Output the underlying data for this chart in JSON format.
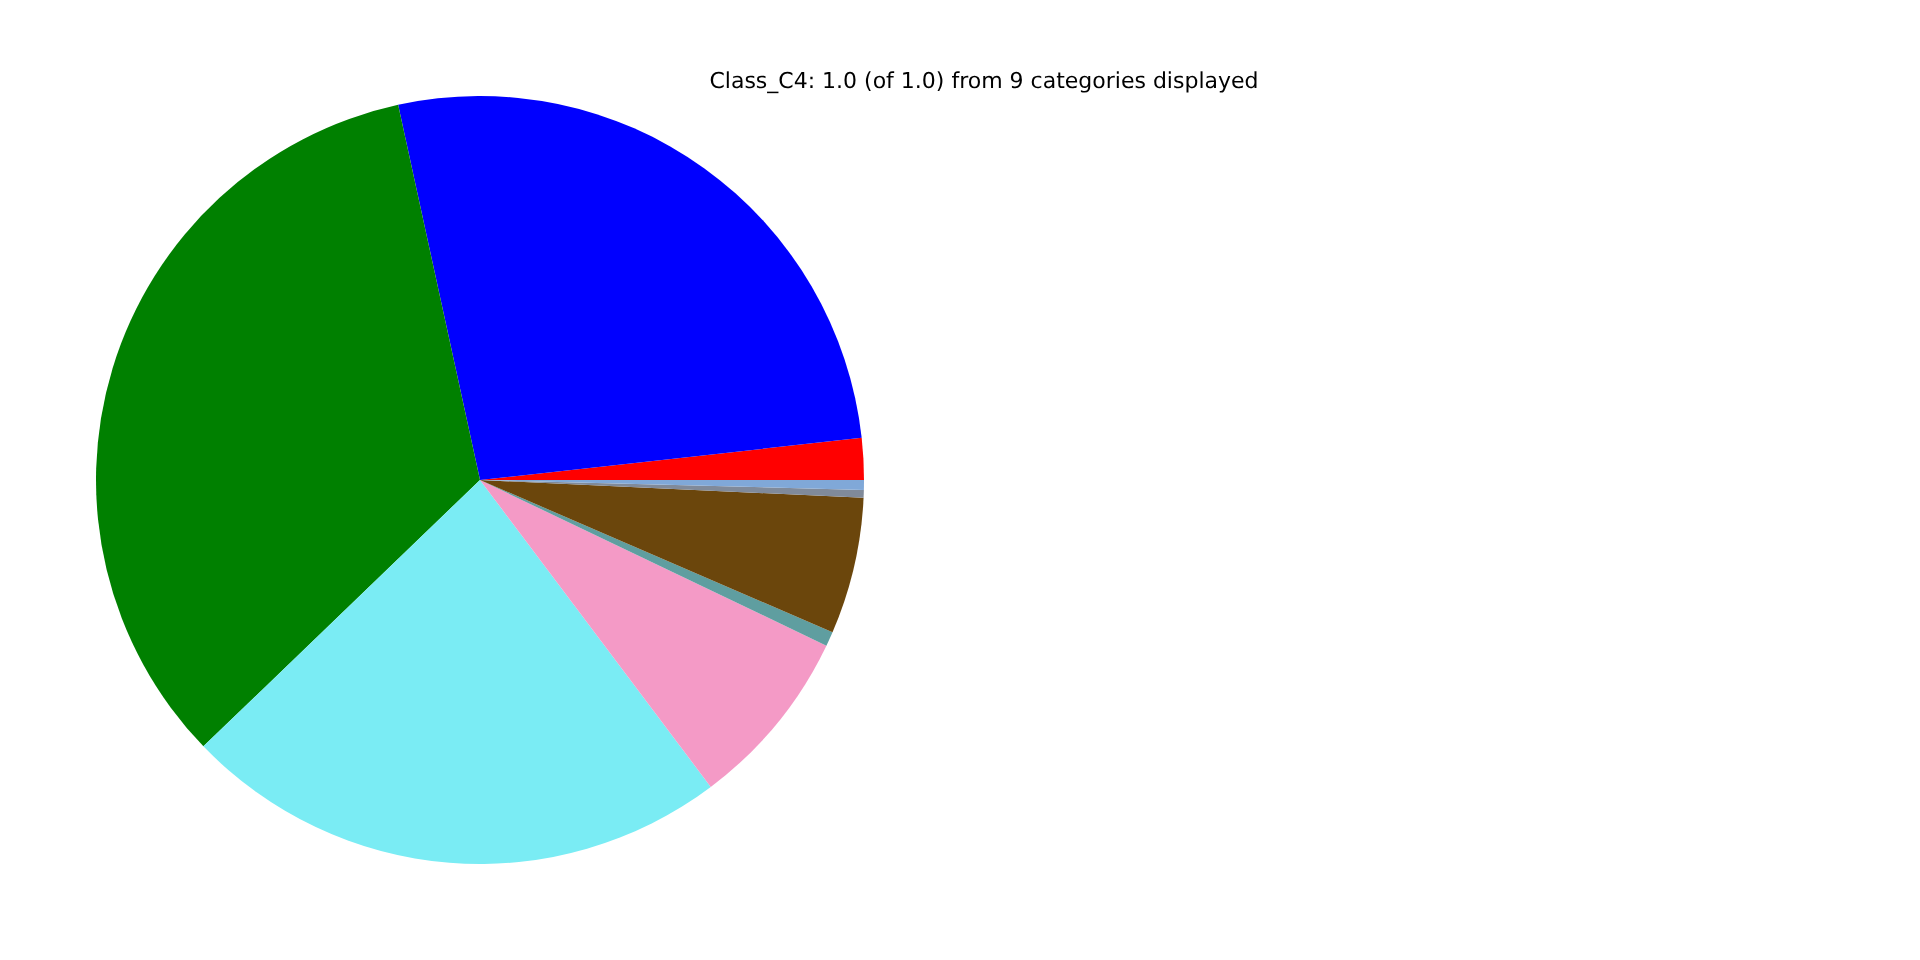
{
  "chart_data": {
    "type": "pie",
    "title": "Class_C4: 1.0 (of 1.0) from 9 categories displayed",
    "categories": [
      null,
      null,
      null,
      null,
      null,
      null,
      null,
      null,
      null
    ],
    "values": [
      1.75,
      26.67,
      33.78,
      23.06,
      7.64,
      0.61,
      5.75,
      0.33,
      0.41
    ],
    "colors": [
      "#ff0000",
      "#0000ff",
      "#008000",
      "#7aecf4",
      "#f49ac6",
      "#5f9ea0",
      "#6b460c",
      "#808a9a",
      "#80a8d8"
    ]
  }
}
